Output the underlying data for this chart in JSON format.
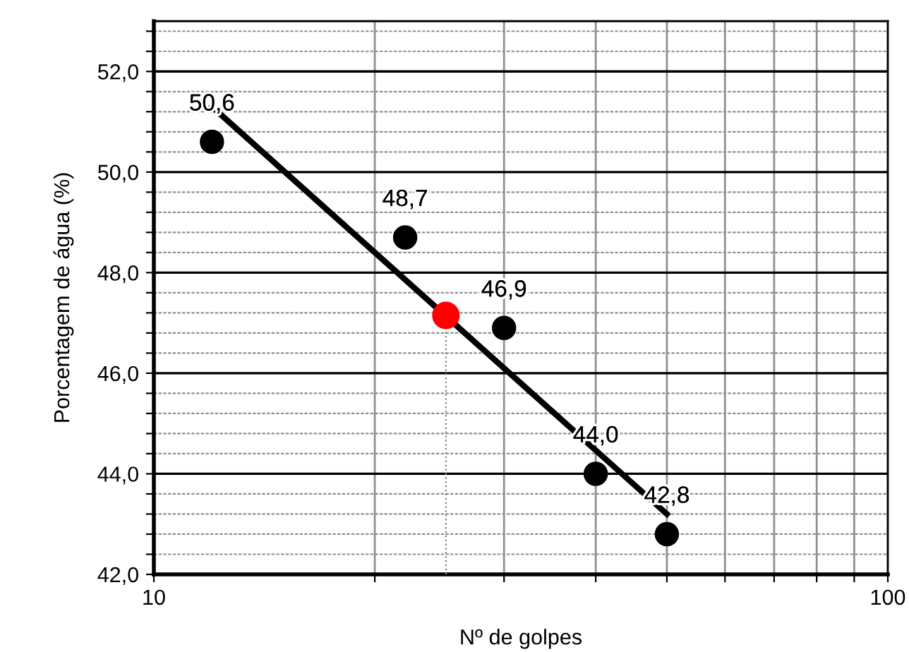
{
  "chart_data": {
    "type": "scatter",
    "xlabel": "Nº de golpes",
    "ylabel": "Porcentagem de água (%)",
    "log": "x",
    "xlim": [
      10,
      100
    ],
    "ylim": [
      42,
      53
    ],
    "xticks": [
      10,
      {
        "value": 20,
        "label": null
      },
      {
        "value": 30,
        "label": null
      },
      {
        "value": 40,
        "label": null
      },
      {
        "value": 50,
        "label": null
      },
      {
        "value": 60,
        "label": null
      },
      {
        "value": 70,
        "label": null
      },
      {
        "value": 80,
        "label": null
      },
      {
        "value": 90,
        "label": null
      },
      100
    ],
    "yticks": [
      {
        "value": 42,
        "label": "42,0"
      },
      {
        "value": 42.4,
        "label": null
      },
      {
        "value": 42.8,
        "label": null
      },
      {
        "value": 43.2,
        "label": null
      },
      {
        "value": 43.6,
        "label": null
      },
      {
        "value": 44,
        "label": "44,0"
      },
      {
        "value": 44.4,
        "label": null
      },
      {
        "value": 44.8,
        "label": null
      },
      {
        "value": 45.2,
        "label": null
      },
      {
        "value": 45.6,
        "label": null
      },
      {
        "value": 46,
        "label": "46,0"
      },
      {
        "value": 46.4,
        "label": null
      },
      {
        "value": 46.8,
        "label": null
      },
      {
        "value": 47.2,
        "label": null
      },
      {
        "value": 47.6,
        "label": null
      },
      {
        "value": 48,
        "label": "48,0"
      },
      {
        "value": 48.4,
        "label": null
      },
      {
        "value": 48.8,
        "label": null
      },
      {
        "value": 49.2,
        "label": null
      },
      {
        "value": 49.6,
        "label": null
      },
      {
        "value": 50,
        "label": "50,0"
      },
      {
        "value": 50.4,
        "label": null
      },
      {
        "value": 50.8,
        "label": null
      },
      {
        "value": 51.2,
        "label": null
      },
      {
        "value": 51.6,
        "label": null
      },
      {
        "value": 52,
        "label": "52,0"
      },
      {
        "value": 52.4,
        "label": null
      },
      {
        "value": 52.8,
        "label": null
      }
    ],
    "grid": true,
    "marker": "circle",
    "series": [
      {
        "color": "#000000",
        "x": [
          12,
          22,
          30,
          40,
          50
        ],
        "values": [
          50.6,
          48.7,
          46.9,
          44.0,
          42.8
        ],
        "value_labels": [
          "50,6",
          "48,7",
          "46,9",
          "44,0",
          "42,8"
        ]
      },
      {
        "type": "line",
        "color": "#000000",
        "x": [
          12,
          50
        ],
        "values": [
          51.3,
          43.2
        ],
        "marker": "none",
        "line_style": "solid"
      },
      {
        "type": "line",
        "color": "#808080",
        "x": [
          25,
          25
        ],
        "values": [
          42,
          47.15
        ],
        "marker": "none",
        "line_style": "dotted"
      },
      {
        "color": "#ff0000",
        "x": [
          25
        ],
        "values": [
          47.15
        ]
      }
    ]
  }
}
